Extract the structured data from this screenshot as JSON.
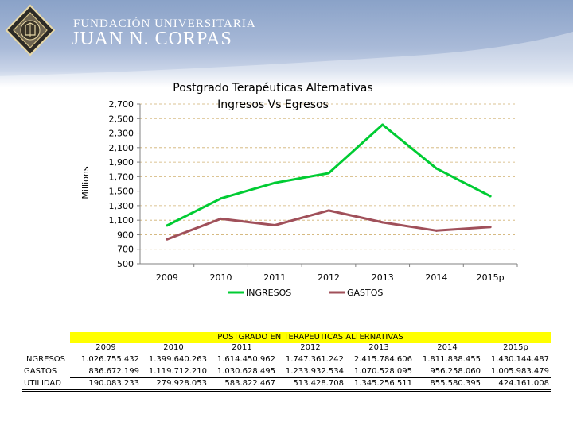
{
  "brand": {
    "line1": "FUNDACIÓN UNIVERSITARIA",
    "line2": "JUAN N. CORPAS"
  },
  "colors": {
    "ingresos": "#00cc33",
    "gastos": "#a0505a",
    "grid": "#d0b070",
    "axis": "#808080",
    "highlight": "#ffff00"
  },
  "chart_data": {
    "type": "line",
    "title": "Postgrado Terapéuticas Alternativas",
    "subtitle": "Ingresos Vs Egresos",
    "ylabel": "Millions",
    "xlabel": "",
    "categories": [
      "2009",
      "2010",
      "2011",
      "2012",
      "2013",
      "2014",
      "2015p"
    ],
    "yticks": [
      "2,700",
      "2,500",
      "2,300",
      "2,100",
      "1,900",
      "1,700",
      "1,500",
      "1,300",
      "1,100",
      "900",
      "700",
      "500"
    ],
    "ylim": [
      500,
      2700
    ],
    "legend_position": "bottom",
    "series": [
      {
        "name": "INGRESOS",
        "values": [
          1026.755,
          1399.64,
          1614.451,
          1747.361,
          2415.785,
          1811.838,
          1430.144
        ]
      },
      {
        "name": "GASTOS",
        "values": [
          836.672,
          1119.712,
          1030.628,
          1233.933,
          1070.528,
          956.258,
          1005.983
        ]
      }
    ]
  },
  "table": {
    "title": "POSTGRADO EN TERAPEUTICAS ALTERNATIVAS",
    "years": [
      "2009",
      "2010",
      "2011",
      "2012",
      "2013",
      "2014",
      "2015p"
    ],
    "rows": [
      {
        "label": "INGRESOS",
        "values": [
          "1.026.755.432",
          "1.399.640.263",
          "1.614.450.962",
          "1.747.361.242",
          "2.415.784.606",
          "1.811.838.455",
          "1.430.144.487"
        ]
      },
      {
        "label": "GASTOS",
        "values": [
          "836.672.199",
          "1.119.712.210",
          "1.030.628.495",
          "1.233.932.534",
          "1.070.528.095",
          "956.258.060",
          "1.005.983.479"
        ]
      },
      {
        "label": "UTILIDAD",
        "values": [
          "190.083.233",
          "279.928.053",
          "583.822.467",
          "513.428.708",
          "1.345.256.511",
          "855.580.395",
          "424.161.008"
        ]
      }
    ]
  }
}
